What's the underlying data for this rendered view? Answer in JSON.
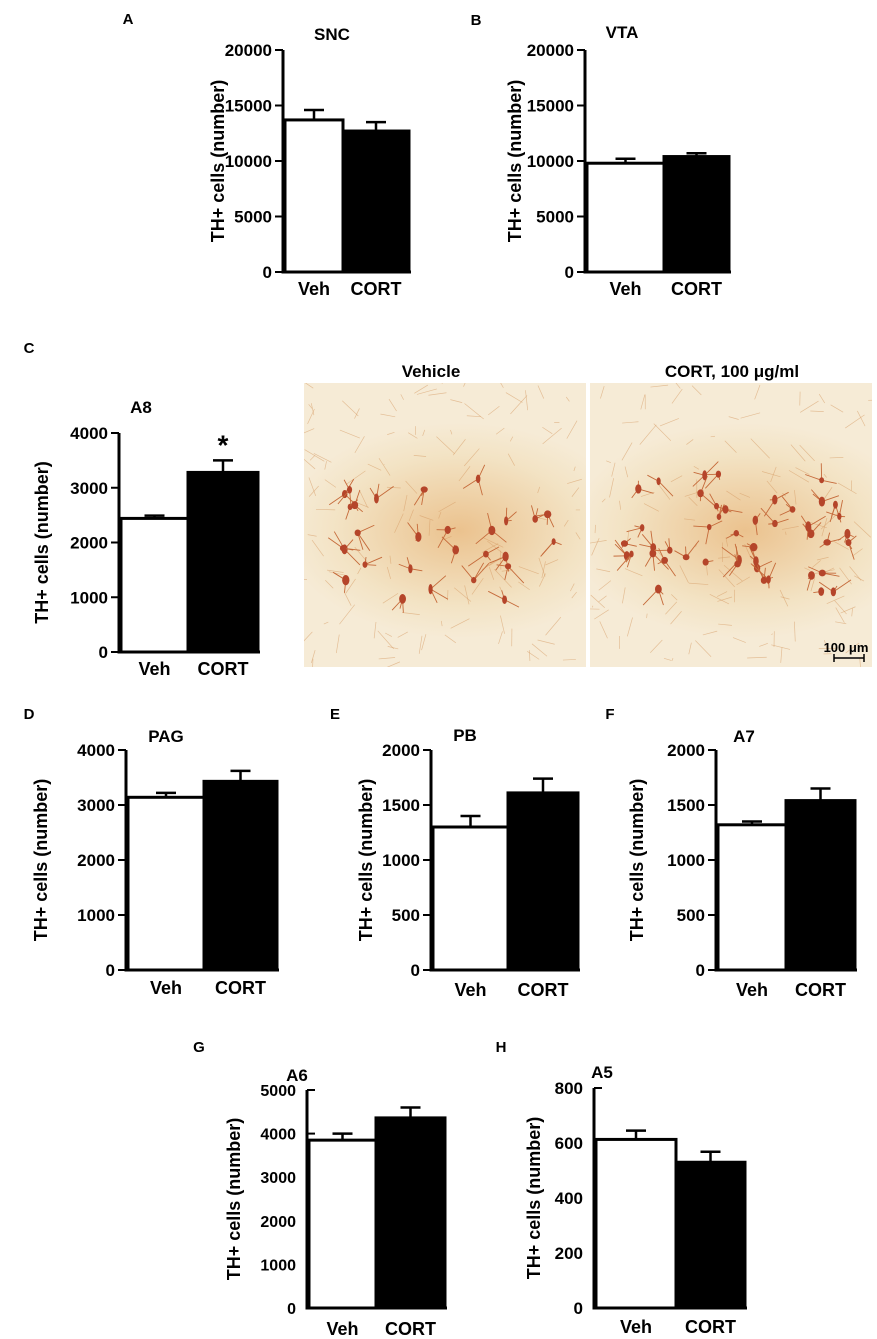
{
  "figure": {
    "panel_c_images": {
      "vehicle_title": "Vehicle",
      "cort_title": "CORT, 100 μg/ml",
      "scalebar_label": "100 μm",
      "stain_color": "#b5452a",
      "background_color": "#f3e3c4"
    }
  },
  "chart_data": [
    {
      "panel": "A",
      "type": "bar",
      "title": "SNC",
      "ylabel": "TH+ cells (number)",
      "categories": [
        "Veh",
        "CORT"
      ],
      "values": [
        13700,
        12700
      ],
      "errors": [
        900,
        800
      ],
      "ylim": [
        0,
        20000
      ],
      "yticks": [
        0,
        5000,
        10000,
        15000,
        20000
      ],
      "colors": [
        "#ffffff",
        "#000000"
      ],
      "annotation": ""
    },
    {
      "panel": "B",
      "type": "bar",
      "title": "VTA",
      "ylabel": "TH+ cells (number)",
      "categories": [
        "Veh",
        "CORT"
      ],
      "values": [
        9800,
        10400
      ],
      "errors": [
        400,
        300
      ],
      "ylim": [
        0,
        20000
      ],
      "yticks": [
        0,
        5000,
        10000,
        15000,
        20000
      ],
      "colors": [
        "#ffffff",
        "#000000"
      ],
      "annotation": ""
    },
    {
      "panel": "C",
      "type": "bar",
      "title": "A8",
      "ylabel": "TH+ cells (number)",
      "categories": [
        "Veh",
        "CORT"
      ],
      "values": [
        2440,
        3280
      ],
      "errors": [
        50,
        220
      ],
      "ylim": [
        0,
        4000
      ],
      "yticks": [
        0,
        1000,
        2000,
        3000,
        4000
      ],
      "colors": [
        "#ffffff",
        "#000000"
      ],
      "annotation": "*"
    },
    {
      "panel": "D",
      "type": "bar",
      "title": "PAG",
      "ylabel": "TH+ cells (number)",
      "categories": [
        "Veh",
        "CORT"
      ],
      "values": [
        3140,
        3430
      ],
      "errors": [
        80,
        190
      ],
      "ylim": [
        0,
        4000
      ],
      "yticks": [
        0,
        1000,
        2000,
        3000,
        4000
      ],
      "colors": [
        "#ffffff",
        "#000000"
      ],
      "annotation": ""
    },
    {
      "panel": "E",
      "type": "bar",
      "title": "PB",
      "ylabel": "TH+ cells (number)",
      "categories": [
        "Veh",
        "CORT"
      ],
      "values": [
        1300,
        1610
      ],
      "errors": [
        100,
        130
      ],
      "ylim": [
        0,
        2000
      ],
      "yticks": [
        0,
        500,
        1000,
        1500,
        2000
      ],
      "colors": [
        "#ffffff",
        "#000000"
      ],
      "annotation": ""
    },
    {
      "panel": "F",
      "type": "bar",
      "title": "A7",
      "ylabel": "TH+ cells (number)",
      "categories": [
        "Veh",
        "CORT"
      ],
      "values": [
        1320,
        1540
      ],
      "errors": [
        30,
        110
      ],
      "ylim": [
        0,
        2000
      ],
      "yticks": [
        0,
        500,
        1000,
        1500,
        2000
      ],
      "colors": [
        "#ffffff",
        "#000000"
      ],
      "annotation": ""
    },
    {
      "panel": "G",
      "type": "bar",
      "title": "A6",
      "ylabel": "TH+ cells (number)",
      "categories": [
        "Veh",
        "CORT"
      ],
      "values": [
        3850,
        4360
      ],
      "errors": [
        150,
        240
      ],
      "ylim": [
        0,
        5000
      ],
      "yticks": [
        0,
        1000,
        2000,
        3000,
        4000,
        5000
      ],
      "colors": [
        "#ffffff",
        "#000000"
      ],
      "annotation": ""
    },
    {
      "panel": "H",
      "type": "bar",
      "title": "A5",
      "ylabel": "TH+ cells (number)",
      "categories": [
        "Veh",
        "CORT"
      ],
      "values": [
        613,
        530
      ],
      "errors": [
        32,
        38
      ],
      "ylim": [
        0,
        800
      ],
      "yticks": [
        0,
        200,
        400,
        600,
        800
      ],
      "colors": [
        "#ffffff",
        "#000000"
      ],
      "annotation": ""
    }
  ]
}
